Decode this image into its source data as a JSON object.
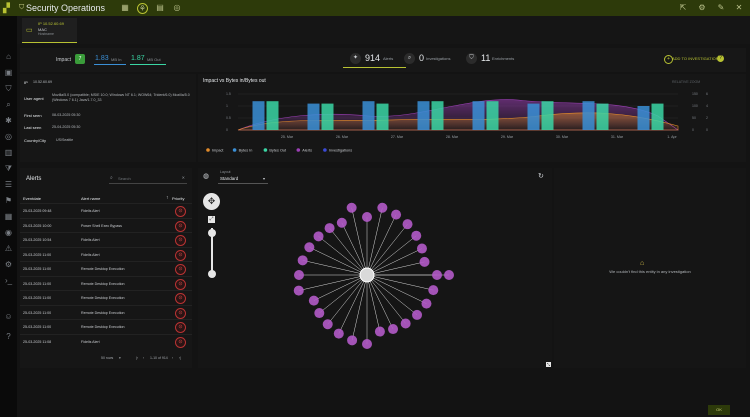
{
  "app": {
    "title": "Security Operations"
  },
  "tab": {
    "ip": "IP 10.52.60.69",
    "type": "MAC",
    "sub": "Hostname"
  },
  "summary": {
    "impact_label": "Impact",
    "impact_value": "7",
    "mb_in_value": "1.83",
    "mb_in_label": "MB In",
    "mb_out_value": "1.87",
    "mb_out_label": "MB Out",
    "alerts_count": "914",
    "alerts_label": "Alerts",
    "investigations_count": "0",
    "investigations_label": "Investigations",
    "enrichments_count": "11",
    "enrichments_label": "Enrichments",
    "add_to_investigation": "ADD TO INVESTIGATION"
  },
  "details": {
    "ip_label": "IP",
    "ip_value": "10.52.60.69",
    "ua_label": "User agent",
    "ua_value": "Mozilla/5.0 (compatible; MSIE 10.0; Windows NT 6.1; WOW64; Trident/6.0) Mozilla/5.0 (Windows 7 6.1) Java/1.7.0_33",
    "first_label": "First seen",
    "first_value": "08-03-2025 05:30",
    "last_label": "Last seen",
    "last_value": "25-04-2025 05:30",
    "country_label": "Country/City",
    "country_value": "US/Seattle"
  },
  "chart_data": {
    "type": "bar",
    "title": "Impact vs Bytes in/Bytes out",
    "categories": [
      "25. Mar",
      "26. Mar",
      "27. Mar",
      "28. Mar",
      "29. Mar",
      "30. Mar",
      "31. Mar",
      "1. Apr"
    ],
    "y_left_ticks": [
      "0",
      "0.5",
      "1",
      "1.5"
    ],
    "y_right_ticks": [
      "0",
      "50",
      "100",
      "150"
    ],
    "y_right_ticks_2": [
      "0",
      "2",
      "4",
      "6"
    ],
    "series": [
      {
        "name": "Impact",
        "color": "#e38b2a"
      },
      {
        "name": "Bytes In",
        "color": "#3a8fd6",
        "values": [
          1.2,
          1.1,
          1.2,
          1.2,
          1.2,
          1.1,
          1.2,
          1.0
        ]
      },
      {
        "name": "Bytes Out",
        "color": "#3ad6a4",
        "values": [
          1.2,
          1.1,
          1.1,
          1.2,
          1.2,
          1.2,
          1.1,
          1.1
        ]
      },
      {
        "name": "Alerts",
        "color": "#9b3fb5"
      },
      {
        "name": "Investigations",
        "color": "#3a4ad6"
      }
    ],
    "relative_zoom": "RELATIVE ZOOM"
  },
  "alerts": {
    "title": "Alerts",
    "search_placeholder": "Search",
    "col_time": "Eventdate",
    "col_name": "Alert name",
    "col_priority": "Priority",
    "rows": [
      {
        "time": "25-03-2025 09:48",
        "name": "Fidelis Alert"
      },
      {
        "time": "25-03-2025 10:00",
        "name": "Power Shell Exec Bypass"
      },
      {
        "time": "25-03-2025 10:54",
        "name": "Fidelis Alert"
      },
      {
        "time": "25-03-2025 11:00",
        "name": "Fidelis Alert"
      },
      {
        "time": "25-03-2025 11:00",
        "name": "Remote Desktop Execution"
      },
      {
        "time": "25-03-2025 11:00",
        "name": "Remote Desktop Execution"
      },
      {
        "time": "25-03-2025 11:00",
        "name": "Remote Desktop Execution"
      },
      {
        "time": "25-03-2025 11:00",
        "name": "Remote Desktop Execution"
      },
      {
        "time": "25-03-2025 11:00",
        "name": "Remote Desktop Execution"
      },
      {
        "time": "25-03-2025 11:08",
        "name": "Fidelis Alert"
      }
    ],
    "rows_per_page": "50 rows",
    "page_info": "1-10 of 914"
  },
  "graph": {
    "layout_label": "Layout",
    "layout_value": "Standard"
  },
  "empty": {
    "message": "We couldn't find this entity in any investigation"
  },
  "footer": {
    "ok": "OK"
  }
}
